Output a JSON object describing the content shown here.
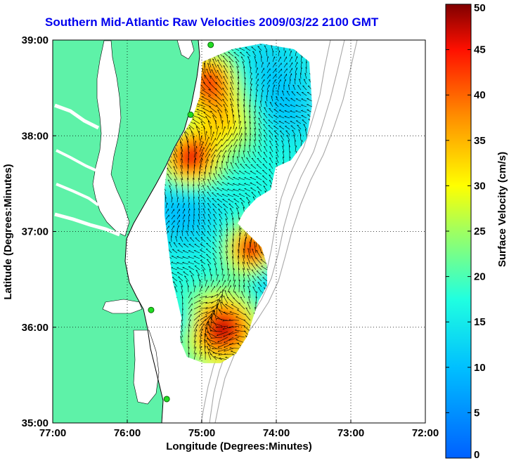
{
  "title": "Southern Mid-Atlantic Raw Velocities 2009/03/22 2100 GMT",
  "x_axis": {
    "label": "Longitude (Degrees:Minutes)",
    "ticks": [
      "77:00",
      "76:00",
      "75:00",
      "74:00",
      "73:00",
      "72:00"
    ],
    "range": [
      -77,
      -72
    ]
  },
  "y_axis": {
    "label": "Latitude (Degrees:Minutes)",
    "ticks": [
      "39:00",
      "38:00",
      "37:00",
      "36:00",
      "35:00"
    ],
    "range": [
      35,
      39
    ]
  },
  "grid": "dotted",
  "colorbar": {
    "label": "Surface Velocity (cm/s)",
    "ticks": [
      "50",
      "45",
      "40",
      "35",
      "30",
      "25",
      "20",
      "15",
      "10",
      "5",
      "0"
    ],
    "range": [
      0,
      50
    ],
    "colormap": "jet"
  },
  "colors": {
    "land": "#5ef2a8",
    "ocean": "#ffffff",
    "title": "#0000ee",
    "stations": "#22dd22"
  },
  "stations": [
    {
      "lon": -74.88,
      "lat": 38.95
    },
    {
      "lon": -75.15,
      "lat": 38.22
    },
    {
      "lon": -75.68,
      "lat": 36.18
    },
    {
      "lon": -75.47,
      "lat": 35.25
    }
  ]
}
